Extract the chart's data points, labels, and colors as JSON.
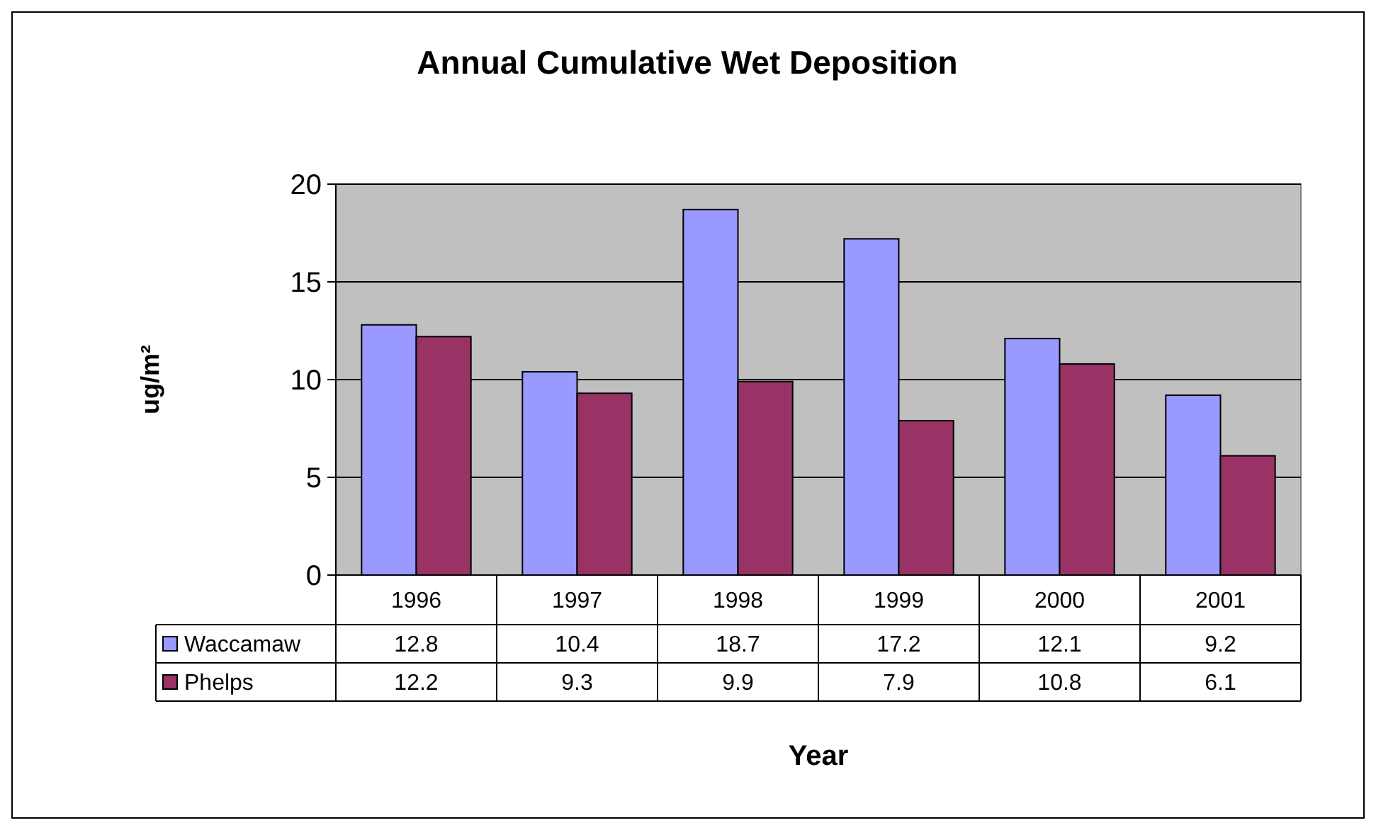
{
  "chart_data": {
    "type": "bar",
    "title": "Annual Cumulative Wet Deposition",
    "xlabel": "Year",
    "ylabel": "ug/m²",
    "categories": [
      "1996",
      "1997",
      "1998",
      "1999",
      "2000",
      "2001"
    ],
    "series": [
      {
        "name": "Waccamaw",
        "color": "#9999ff",
        "values": [
          12.8,
          10.4,
          18.7,
          17.2,
          12.1,
          9.2
        ]
      },
      {
        "name": "Phelps",
        "color": "#993366",
        "values": [
          12.2,
          9.3,
          9.9,
          7.9,
          10.8,
          6.1
        ]
      }
    ],
    "ylim": [
      0,
      20
    ],
    "yticks": [
      0,
      5,
      10,
      15,
      20
    ],
    "grid": "y",
    "legend": "bottom left",
    "data_labels": true
  }
}
